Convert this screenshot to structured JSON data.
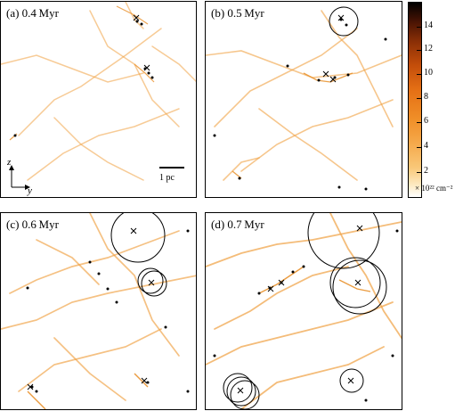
{
  "panels": [
    {
      "label": "(a) 0.4 Myr"
    },
    {
      "label": "(b) 0.5 Myr"
    },
    {
      "label": "(c) 0.6 Myr"
    },
    {
      "label": "(d) 0.7 Myr"
    }
  ],
  "scalebar": {
    "label": "1 pc"
  },
  "axes": {
    "z": "z",
    "y": "y"
  },
  "colorbar": {
    "ticks": [
      "14",
      "12",
      "10",
      "8",
      "6",
      "4",
      "2"
    ],
    "unit": "× 10²² cm⁻²",
    "colors": [
      "#ffffff",
      "#f9c879",
      "#f08f28",
      "#c34d0a",
      "#000000"
    ]
  }
}
